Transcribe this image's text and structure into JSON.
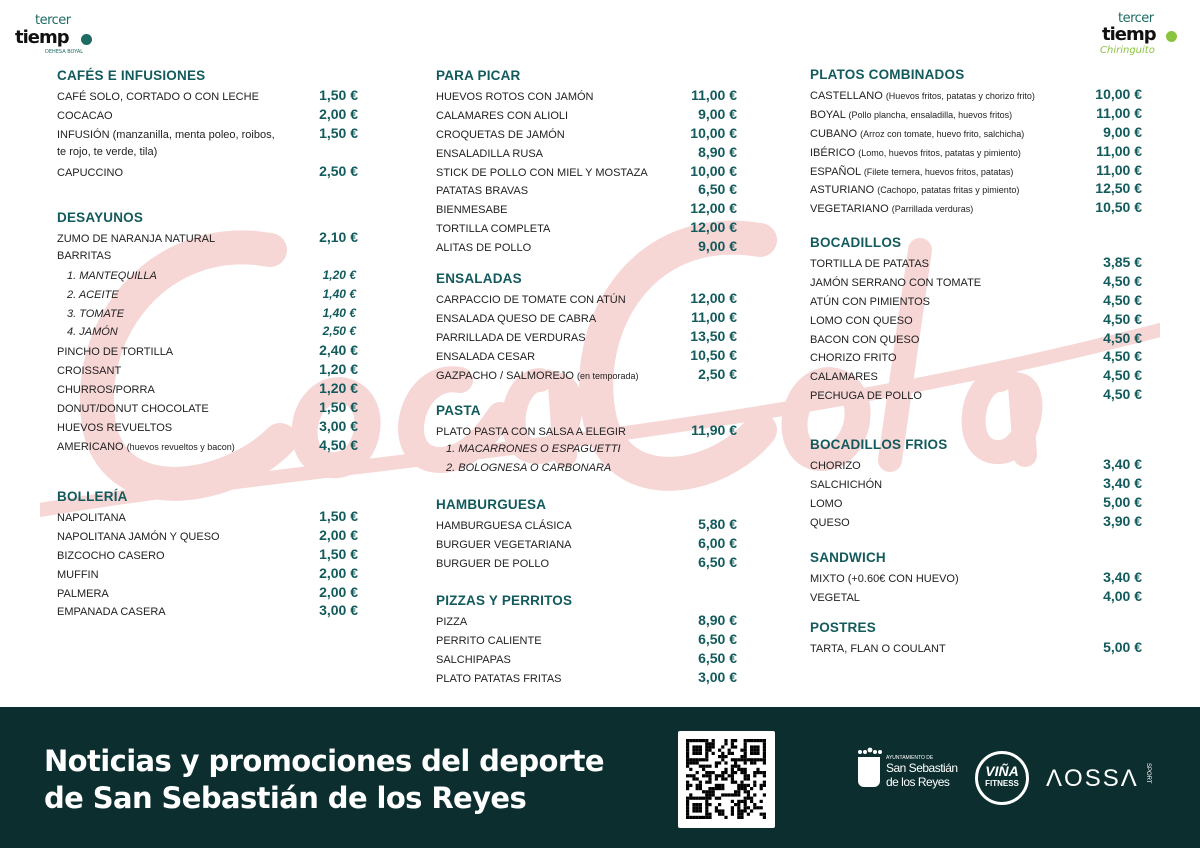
{
  "logo": {
    "line1": "tercer",
    "line2": "tiemp",
    "sub": "DEHESA BOYAL",
    "right_script": "Chiringuito"
  },
  "watermark": "Coca-Cola",
  "columns": [
    [
      {
        "title": "CAFÉS E INFUSIONES",
        "items": [
          {
            "name": "CAFÉ SOLO, CORTADO O CON LECHE",
            "price": "1,50 €"
          },
          {
            "name": "COCACAO",
            "price": "2,00 €"
          },
          {
            "name": "INFUSIÓN (manzanilla, menta poleo, roibos,",
            "price": "1,50 €"
          },
          {
            "name": "te rojo, te verde, tila)"
          },
          {
            "name": "CAPUCCINO",
            "price": "2,50 €"
          }
        ]
      },
      {
        "title": "DESAYUNOS",
        "items": [
          {
            "name": "ZUMO DE NARANJA NATURAL",
            "price": "2,10 €"
          },
          {
            "name": "BARRITAS"
          },
          {
            "name": "1. MANTEQUILLA",
            "price": "1,20 €",
            "sub": true
          },
          {
            "name": "2. ACEITE",
            "price": "1,40 €",
            "sub": true
          },
          {
            "name": "3. TOMATE",
            "price": "1,40 €",
            "sub": true
          },
          {
            "name": "4. JAMÓN",
            "price": "2,50 €",
            "sub": true
          },
          {
            "name": "PINCHO DE TORTILLA",
            "price": "2,40 €"
          },
          {
            "name": "CROISSANT",
            "price": "1,20 €"
          },
          {
            "name": "CHURROS/PORRA",
            "price": "1,20 €"
          },
          {
            "name": "DONUT/DONUT CHOCOLATE",
            "price": "1,50 €"
          },
          {
            "name": "HUEVOS REVUELTOS",
            "price": "3,00 €"
          },
          {
            "name": "AMERICANO",
            "note": "(huevos revueltos y bacon)",
            "price": "4,50 €"
          }
        ]
      },
      {
        "title": "BOLLERÍA",
        "items": [
          {
            "name": "NAPOLITANA",
            "price": "1,50 €"
          },
          {
            "name": "NAPOLITANA JAMÓN Y QUESO",
            "price": "2,00 €"
          },
          {
            "name": "BIZCOCHO CASERO",
            "price": "1,50 €"
          },
          {
            "name": "MUFFIN",
            "price": "2,00 €"
          },
          {
            "name": "PALMERA",
            "price": "2,00 €"
          },
          {
            "name": "EMPANADA CASERA",
            "price": "3,00 €"
          }
        ]
      }
    ],
    [
      {
        "title": "PARA PICAR",
        "items": [
          {
            "name": "HUEVOS ROTOS CON JAMÓN",
            "price": "11,00 €"
          },
          {
            "name": "CALAMARES CON ALIOLI",
            "price": "9,00 €"
          },
          {
            "name": "CROQUETAS DE JAMÓN",
            "price": "10,00 €"
          },
          {
            "name": "ENSALADILLA RUSA",
            "price": "8,90 €"
          },
          {
            "name": "STICK DE POLLO CON MIEL Y MOSTAZA",
            "price": "10,00 €"
          },
          {
            "name": "PATATAS BRAVAS",
            "price": "6,50 €"
          },
          {
            "name": "BIENMESABE",
            "price": "12,00 €"
          },
          {
            "name": "TORTILLA COMPLETA",
            "price": "12,00 €"
          },
          {
            "name": "ALITAS DE POLLO",
            "price": "9,00 €"
          }
        ]
      },
      {
        "title": "ENSALADAS",
        "items": [
          {
            "name": "CARPACCIO DE TOMATE CON ATÚN",
            "price": "12,00 €"
          },
          {
            "name": "ENSALADA QUESO DE CABRA",
            "price": "11,00 €"
          },
          {
            "name": "PARRILLADA DE VERDURAS",
            "price": "13,50 €"
          },
          {
            "name": "ENSALADA CESAR",
            "price": "10,50 €"
          },
          {
            "name": "GAZPACHO / SALMOREJO",
            "note": "(en temporada)",
            "price": "2,50 €"
          }
        ]
      },
      {
        "title": "PASTA",
        "items": [
          {
            "name": "PLATO PASTA CON SALSA A ELEGIR",
            "price": "11,90 €"
          },
          {
            "name": "1. MACARRONES O ESPAGUETTI",
            "sub": true
          },
          {
            "name": "2. BOLOGNESA O CARBONARA",
            "sub": true
          }
        ]
      },
      {
        "title": "HAMBURGUESA",
        "items": [
          {
            "name": "HAMBURGUESA CLÁSICA",
            "price": "5,80 €"
          },
          {
            "name": "BURGUER VEGETARIANA",
            "price": "6,00 €"
          },
          {
            "name": "BURGUER DE POLLO",
            "price": "6,50 €"
          }
        ]
      },
      {
        "title": "PIZZAS Y PERRITOS",
        "items": [
          {
            "name": "PIZZA",
            "price": "8,90 €"
          },
          {
            "name": "PERRITO CALIENTE",
            "price": "6,50 €"
          },
          {
            "name": "SALCHIPAPAS",
            "price": "6,50 €"
          },
          {
            "name": "PLATO PATATAS FRITAS",
            "price": "3,00 €"
          }
        ]
      }
    ],
    [
      {
        "title": "PLATOS COMBINADOS",
        "items": [
          {
            "name": "CASTELLANO",
            "note": "(Huevos fritos, patatas y chorizo frito)",
            "price": "10,00 €"
          },
          {
            "name": "BOYAL",
            "note": "(Pollo plancha, ensaladilla, huevos fritos)",
            "price": "11,00 €"
          },
          {
            "name": "CUBANO",
            "note": "(Arroz con tomate, huevo frito, salchicha)",
            "price": "9,00 €"
          },
          {
            "name": "IBÉRICO",
            "note": "(Lomo, huevos fritos, patatas y pimiento)",
            "price": "11,00 €"
          },
          {
            "name": "ESPAÑOL",
            "note": "(Filete ternera, huevos fritos, patatas)",
            "price": "11,00 €"
          },
          {
            "name": "ASTURIANO",
            "note": "(Cachopo, patatas fritas y pimiento)",
            "price": "12,50 €"
          },
          {
            "name": "VEGETARIANO",
            "note": "(Parrillada verduras)",
            "price": "10,50 €"
          }
        ]
      },
      {
        "title": "BOCADILLOS",
        "items": [
          {
            "name": "TORTILLA DE PATATAS",
            "price": "3,85 €"
          },
          {
            "name": "JAMÓN SERRANO CON TOMATE",
            "price": "4,50 €"
          },
          {
            "name": "ATÚN CON PIMIENTOS",
            "price": "4,50 €"
          },
          {
            "name": "LOMO CON QUESO",
            "price": "4,50 €"
          },
          {
            "name": "BACON CON QUESO",
            "price": "4,50 €"
          },
          {
            "name": "CHORIZO FRITO",
            "price": "4,50 €"
          },
          {
            "name": "CALAMARES",
            "price": "4,50 €"
          },
          {
            "name": "PECHUGA DE POLLO",
            "price": "4,50 €"
          }
        ]
      },
      {
        "title": "BOCADILLOS FRIOS",
        "items": [
          {
            "name": "CHORIZO",
            "price": "3,40 €"
          },
          {
            "name": "SALCHICHÓN",
            "price": "3,40 €"
          },
          {
            "name": "LOMO",
            "price": "5,00 €"
          },
          {
            "name": "QUESO",
            "price": "3,90 €"
          }
        ]
      },
      {
        "title": "SANDWICH",
        "items": [
          {
            "name": "MIXTO (+0.60€ CON HUEVO)",
            "price": "3,40 €"
          },
          {
            "name": "VEGETAL",
            "price": "4,00 €"
          }
        ]
      },
      {
        "title": "POSTRES",
        "items": [
          {
            "name": "TARTA, FLAN O COULANT",
            "price": "5,00 €"
          }
        ]
      }
    ]
  ],
  "footer": {
    "slogan_line1": "Noticias y promociones del deporte",
    "slogan_line2": "de San Sebastián de los Reyes",
    "sponsors": {
      "ayto_small": "AYUNTAMIENTO DE",
      "ayto_line1": "San Sebastián",
      "ayto_line2": "de los Reyes",
      "vina_line1": "VIÑA",
      "vina_line2": "FITNESS",
      "aossa": "ΛOSSΛ",
      "aossa_sub": "SPORT"
    }
  },
  "colors": {
    "accent": "#135a5c",
    "footer_bg": "#0c2e2e",
    "watermark": "#f6d3d3"
  }
}
